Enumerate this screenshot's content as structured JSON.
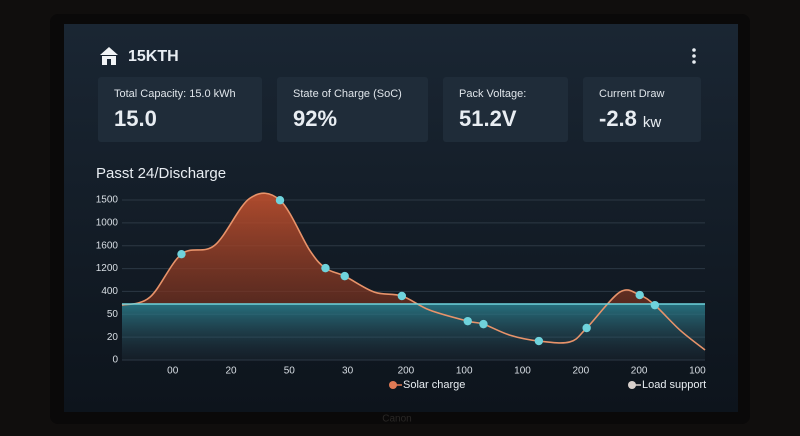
{
  "header": {
    "title": "15KTH"
  },
  "cards": [
    {
      "label": "Total Capacity: 15.0 kWh",
      "value": "15.0"
    },
    {
      "label": "State of Charge (SoC)",
      "value": "92%"
    },
    {
      "label": "Pack Voltage:",
      "value": "51.2V"
    },
    {
      "label": "Current Draw",
      "value": "-2.8",
      "unit": "kw"
    }
  ],
  "chart_data": {
    "type": "line",
    "title": "Passt 24/Discharge",
    "xlim": [
      -0.87,
      9.13
    ],
    "ylim": [
      0,
      7
    ],
    "xticks": [
      {
        "value": 0,
        "label": "00"
      },
      {
        "value": 1,
        "label": "20"
      },
      {
        "value": 2,
        "label": "50"
      },
      {
        "value": 3,
        "label": "30"
      },
      {
        "value": 4,
        "label": "200"
      },
      {
        "value": 5,
        "label": "100"
      },
      {
        "value": 6,
        "label": "100"
      },
      {
        "value": 7,
        "label": "200"
      },
      {
        "value": 8,
        "label": "200"
      },
      {
        "value": 9,
        "label": "100"
      }
    ],
    "yticks": [
      0,
      {
        "value": 1,
        "label": "20"
      },
      {
        "value": 2,
        "label": "50"
      },
      {
        "value": 3,
        "label": "400"
      },
      {
        "value": 4,
        "label": "1200"
      },
      {
        "value": 5,
        "label": "1600"
      },
      {
        "value": 6,
        "label": "1000"
      },
      {
        "value": 7,
        "label": "1500"
      }
    ],
    "grid": true,
    "baseline": 2.45,
    "baseline_color": "#6fd3dc",
    "series": [
      {
        "color": "#e8936a",
        "x": [
          -0.87,
          -0.39,
          0.15,
          0.72,
          1.32,
          1.84,
          2.35,
          2.62,
          2.95,
          3.46,
          3.93,
          4.41,
          5.06,
          5.33,
          5.78,
          6.28,
          6.81,
          7.1,
          7.67,
          8.01,
          8.27,
          8.7,
          9.13
        ],
        "values": [
          2.4,
          2.75,
          4.63,
          5.02,
          7.07,
          6.99,
          4.8,
          4.02,
          3.67,
          2.97,
          2.8,
          2.18,
          1.7,
          1.57,
          1.09,
          0.83,
          0.79,
          1.4,
          2.97,
          2.84,
          2.4,
          1.31,
          0.44
        ]
      }
    ],
    "points": {
      "color": "#6fd3dc",
      "x": [
        0.15,
        1.84,
        2.62,
        2.95,
        3.93,
        5.06,
        5.33,
        6.28,
        7.1,
        8.01,
        8.27
      ],
      "values": [
        4.63,
        6.99,
        4.02,
        3.67,
        2.8,
        1.7,
        1.57,
        0.83,
        1.4,
        2.84,
        2.4
      ]
    },
    "legend": [
      {
        "label": "Solar charge",
        "color": "#e07a55"
      },
      {
        "label": "Load support",
        "color": "#d8d0cc"
      }
    ]
  },
  "bezel": {
    "brand": "Canon"
  }
}
